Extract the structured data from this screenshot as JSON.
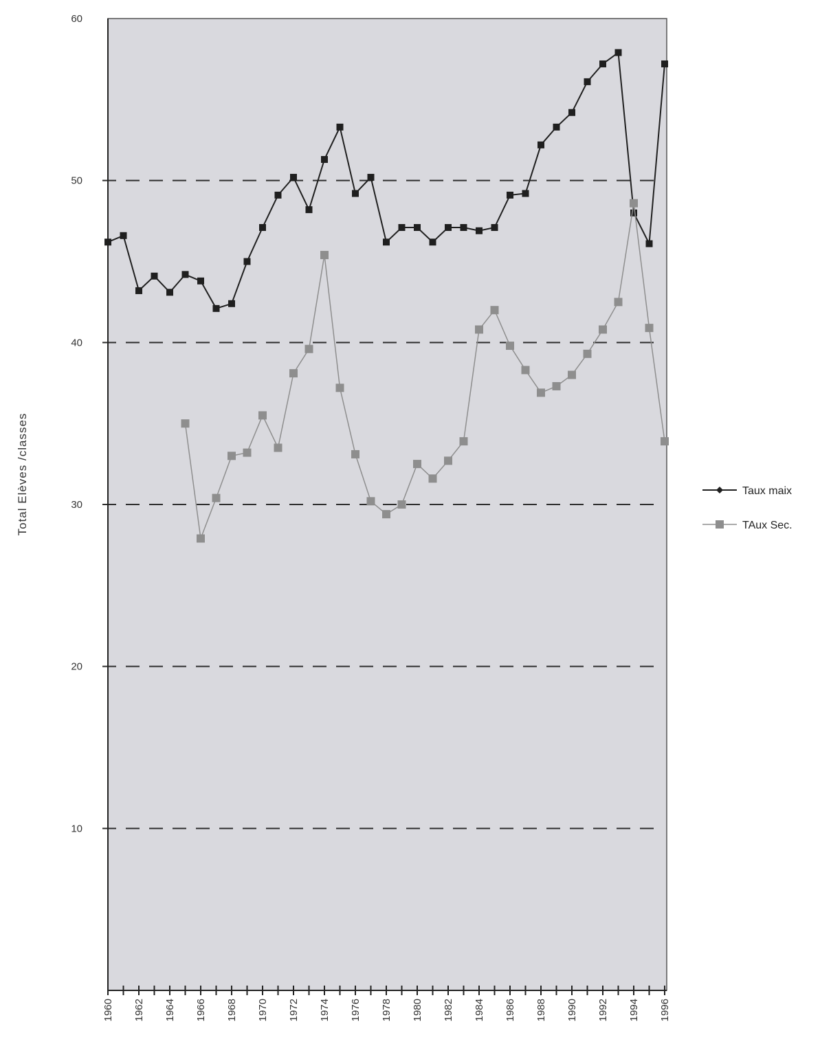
{
  "chart_data": {
    "type": "line",
    "ylabel": "Total Elèves /classes",
    "ylim": [
      0,
      60
    ],
    "y_ticks": [
      "10",
      "20",
      "30",
      "40",
      "50",
      "60"
    ],
    "x": [
      1960,
      1961,
      1962,
      1963,
      1964,
      1965,
      1966,
      1967,
      1968,
      1969,
      1970,
      1971,
      1972,
      1973,
      1974,
      1975,
      1976,
      1977,
      1978,
      1979,
      1980,
      1981,
      1982,
      1983,
      1984,
      1985,
      1986,
      1987,
      1988,
      1989,
      1990,
      1991,
      1992,
      1993,
      1994,
      1995,
      1996
    ],
    "x_tick_labels": [
      "1960",
      "1962",
      "1964",
      "1966",
      "1968",
      "1970",
      "1972",
      "1974",
      "1976",
      "1978",
      "1980",
      "1982",
      "1984",
      "1986",
      "1988",
      "1990",
      "1992",
      "1994",
      "1996"
    ],
    "grid": "dashed horizontal lines at 10, 20, 30, 40, 50",
    "legend_position": "right",
    "series": [
      {
        "name": "Taux maix",
        "color": "#1f1f1f",
        "values": [
          46.2,
          46.6,
          43.2,
          44.1,
          43.1,
          44.2,
          43.8,
          42.1,
          42.4,
          45.0,
          47.1,
          49.1,
          50.2,
          48.2,
          51.3,
          53.3,
          49.2,
          50.2,
          46.2,
          47.1,
          47.1,
          46.2,
          47.1,
          47.1,
          46.9,
          47.1,
          49.1,
          49.2,
          52.2,
          53.3,
          54.2,
          56.1,
          57.2,
          57.9,
          48.0,
          46.1,
          57.2
        ]
      },
      {
        "name": "TAux Sec.",
        "color": "#8e8e8e",
        "values": [
          null,
          null,
          null,
          null,
          null,
          35.0,
          27.9,
          30.4,
          33.0,
          33.2,
          35.5,
          33.5,
          38.1,
          39.6,
          45.4,
          37.2,
          33.1,
          30.2,
          29.4,
          30.0,
          32.5,
          31.6,
          32.7,
          33.9,
          40.8,
          42.0,
          39.8,
          38.3,
          36.9,
          37.3,
          38.0,
          39.3,
          40.8,
          42.5,
          48.6,
          40.9,
          33.9
        ]
      }
    ],
    "colors": {
      "plot_background": "#d9d9de",
      "grid_line": "#2e2e2e",
      "axis": "#222222"
    }
  }
}
